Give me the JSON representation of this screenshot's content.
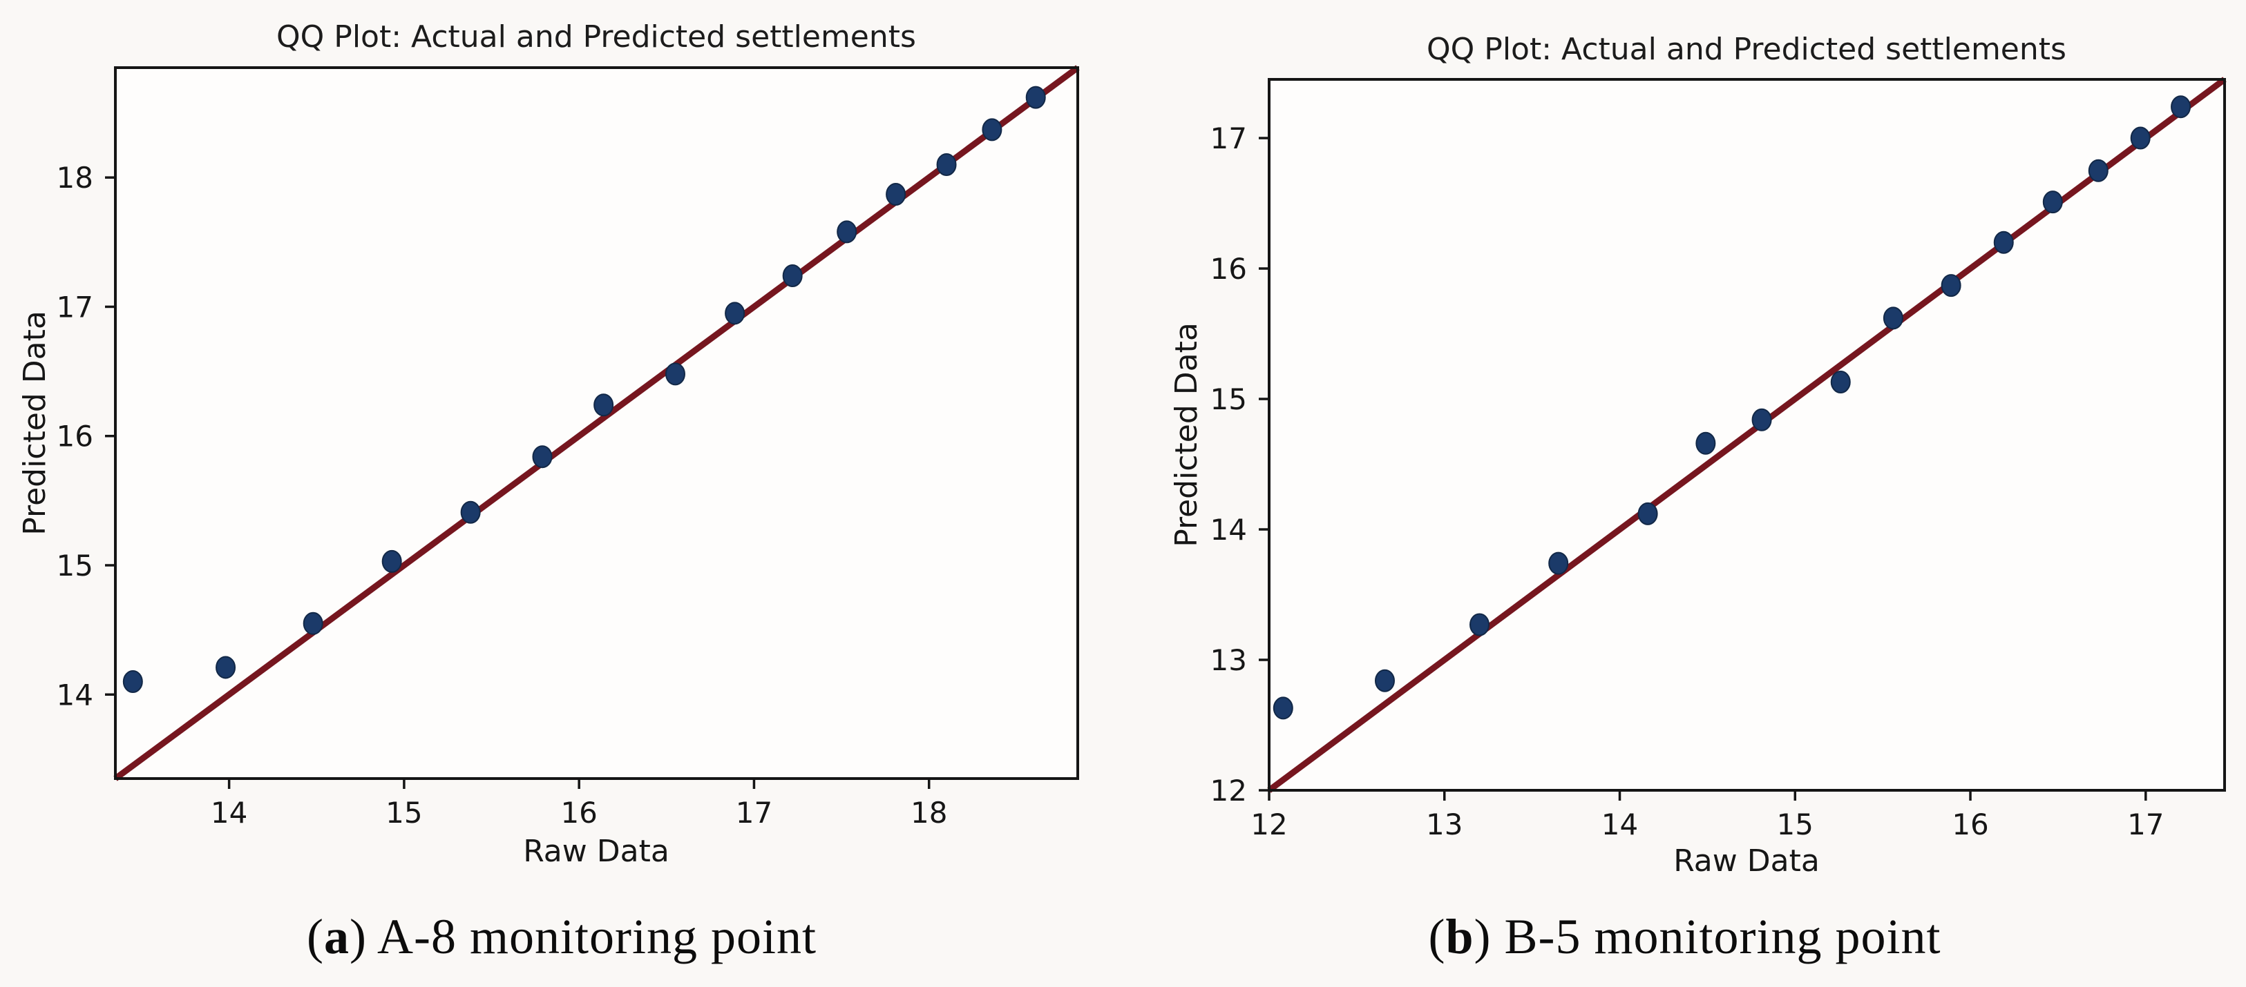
{
  "page": {
    "background": "#faf8f6",
    "text_color": "#161616"
  },
  "chart_data": [
    {
      "type": "scatter",
      "title": "QQ Plot: Actual and Predicted settlements",
      "xlabel": "Raw Data",
      "ylabel": "Predicted Data",
      "caption_prefix": "(",
      "caption_letter": "a",
      "caption_suffix": ") A-8 monitoring point",
      "xlim": [
        13.35,
        18.85
      ],
      "ylim": [
        13.35,
        18.85
      ],
      "xticks": [
        14,
        15,
        16,
        17,
        18
      ],
      "yticks": [
        14,
        15,
        16,
        17,
        18
      ],
      "grid": false,
      "legend": null,
      "identity_line": {
        "from": 13.35,
        "to": 18.85,
        "color": "#76161f"
      },
      "marker_color": "#1b3a69",
      "marker_edge": "#122847",
      "axis_color": "#151515",
      "plot_bg": "#fefdfc",
      "points": [
        [
          13.45,
          14.1
        ],
        [
          13.98,
          14.21
        ],
        [
          14.48,
          14.55
        ],
        [
          14.93,
          15.03
        ],
        [
          15.38,
          15.41
        ],
        [
          15.79,
          15.84
        ],
        [
          16.14,
          16.24
        ],
        [
          16.55,
          16.48
        ],
        [
          16.89,
          16.95
        ],
        [
          17.22,
          17.24
        ],
        [
          17.53,
          17.58
        ],
        [
          17.81,
          17.87
        ],
        [
          18.1,
          18.1
        ],
        [
          18.36,
          18.37
        ],
        [
          18.61,
          18.62
        ]
      ]
    },
    {
      "type": "scatter",
      "title": "QQ Plot: Actual and Predicted settlements",
      "xlabel": "Raw Data",
      "ylabel": "Predicted Data",
      "caption_prefix": "(",
      "caption_letter": "b",
      "caption_suffix": ") B-5 monitoring point",
      "xlim": [
        12.0,
        17.45
      ],
      "ylim": [
        12.0,
        17.45
      ],
      "xticks": [
        12,
        13,
        14,
        15,
        16,
        17
      ],
      "yticks": [
        12,
        13,
        14,
        15,
        16,
        17
      ],
      "grid": false,
      "legend": null,
      "identity_line": {
        "from": 12.0,
        "to": 17.45,
        "color": "#76161f"
      },
      "marker_color": "#1b3a69",
      "marker_edge": "#122847",
      "axis_color": "#151515",
      "plot_bg": "#fefdfc",
      "points": [
        [
          12.08,
          12.63
        ],
        [
          12.66,
          12.84
        ],
        [
          13.2,
          13.27
        ],
        [
          13.65,
          13.74
        ],
        [
          14.16,
          14.12
        ],
        [
          14.49,
          14.66
        ],
        [
          14.81,
          14.84
        ],
        [
          15.26,
          15.13
        ],
        [
          15.56,
          15.62
        ],
        [
          15.89,
          15.87
        ],
        [
          16.19,
          16.2
        ],
        [
          16.47,
          16.51
        ],
        [
          16.73,
          16.75
        ],
        [
          16.97,
          17.0
        ],
        [
          17.2,
          17.24
        ]
      ]
    }
  ]
}
